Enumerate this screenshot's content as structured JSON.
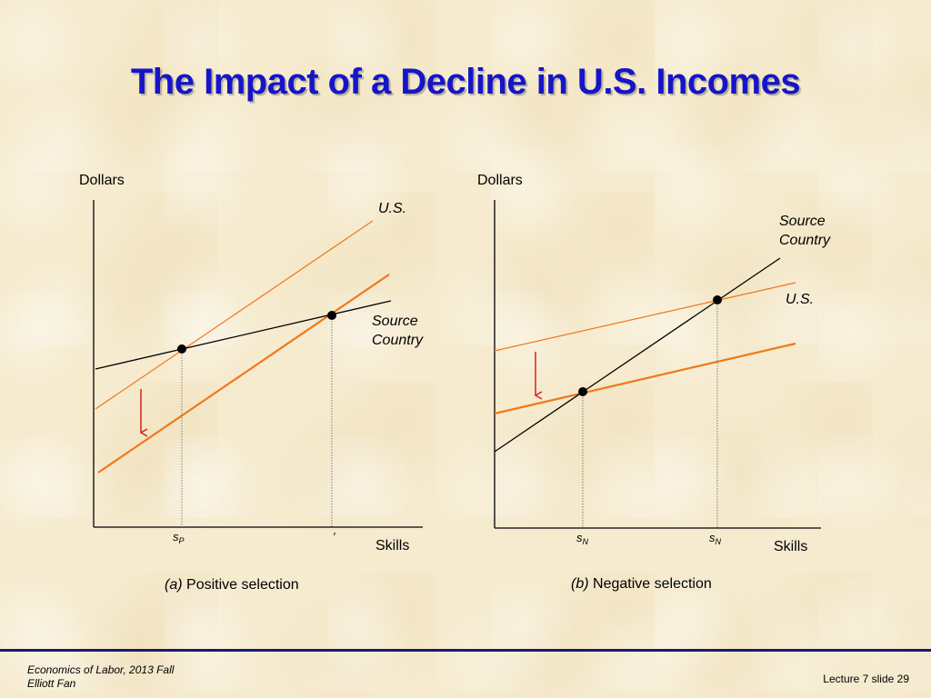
{
  "slide": {
    "title": "The Impact of a Decline in U.S. Incomes"
  },
  "panel_a": {
    "y_axis_label": "Dollars",
    "x_axis_label": "Skills",
    "curve_us": "U.S.",
    "curve_source_line1": "Source",
    "curve_source_line2": "Country",
    "tick1_symbol": "s",
    "tick1_sub": "P",
    "tick2_symbol": "′",
    "caption_letter": "(a)",
    "caption_text": "Positive selection"
  },
  "panel_b": {
    "y_axis_label": "Dollars",
    "x_axis_label": "Skills",
    "curve_us": "U.S.",
    "curve_source_line1": "Source",
    "curve_source_line2": "Country",
    "tick1_symbol": "s",
    "tick1_sub": "N",
    "tick2_symbol": "s",
    "tick2_sub": "N",
    "caption_letter": "(b)",
    "caption_text": "Negative selection"
  },
  "footer": {
    "course": "Economics of Labor, 2013 Fall",
    "author": "Elliott Fan",
    "slide_number": "Lecture 7 slide 29"
  },
  "colors": {
    "title": "#1515c8",
    "us_line": "#f07818",
    "source_line": "#000000",
    "shift_arrow": "#d82020",
    "footer_rule": "#1a1a6e"
  }
}
